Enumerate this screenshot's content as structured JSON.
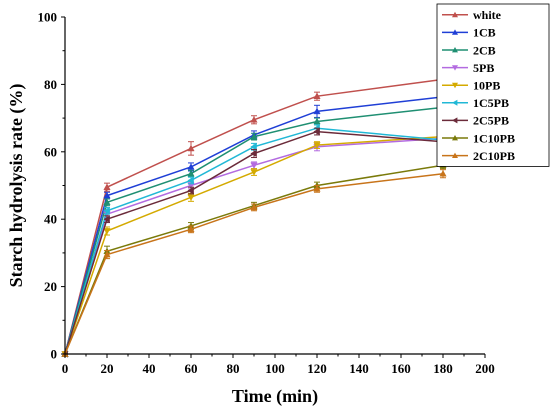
{
  "chart_data": {
    "type": "line",
    "title": "",
    "xlabel": "Time (min)",
    "ylabel": "Starch hydrolysis rate (%)",
    "xlim": [
      0,
      200
    ],
    "ylim": [
      0,
      100
    ],
    "xticks": [
      0,
      20,
      40,
      60,
      80,
      100,
      120,
      140,
      160,
      180,
      200
    ],
    "yticks": [
      0,
      20,
      40,
      60,
      80,
      100
    ],
    "grid": false,
    "legend_position": "top-right",
    "x": [
      0,
      20,
      60,
      90,
      120,
      180
    ],
    "series": [
      {
        "name": "white",
        "color": "#c0504d",
        "marker": "triangle-up",
        "values": [
          0,
          49.5,
          61.0,
          69.5,
          76.5,
          81.5
        ],
        "errors": [
          0,
          1.2,
          2.0,
          1.2,
          1.2,
          1.8
        ]
      },
      {
        "name": "1CB",
        "color": "#1f3fd6",
        "marker": "triangle-up",
        "values": [
          0,
          47.0,
          55.5,
          65.0,
          72.0,
          76.3
        ],
        "errors": [
          0,
          1.0,
          1.2,
          1.2,
          1.8,
          1.0
        ]
      },
      {
        "name": "2CB",
        "color": "#1f8f72",
        "marker": "triangle-up",
        "values": [
          0,
          45.0,
          53.5,
          64.5,
          69.0,
          73.2
        ],
        "errors": [
          0,
          1.0,
          1.0,
          1.0,
          1.0,
          1.0
        ]
      },
      {
        "name": "5PB",
        "color": "#b36be0",
        "marker": "triangle-down",
        "values": [
          0,
          41.5,
          50.0,
          56.0,
          61.5,
          64.0
        ],
        "errors": [
          0,
          1.0,
          1.0,
          1.0,
          1.2,
          1.2
        ]
      },
      {
        "name": "10PB",
        "color": "#d4aa00",
        "marker": "triangle-down",
        "values": [
          0,
          36.5,
          46.5,
          54.0,
          62.0,
          64.5
        ],
        "errors": [
          0,
          1.2,
          1.2,
          1.0,
          1.0,
          1.2
        ]
      },
      {
        "name": "1C5PB",
        "color": "#21b8d6",
        "marker": "triangle-left",
        "values": [
          0,
          42.5,
          51.5,
          61.5,
          67.0,
          63.5
        ],
        "errors": [
          0,
          1.0,
          1.0,
          1.0,
          1.0,
          1.0
        ]
      },
      {
        "name": "2C5PB",
        "color": "#6b2b3a",
        "marker": "triangle-left",
        "values": [
          0,
          40.0,
          48.5,
          59.5,
          66.0,
          63.0
        ],
        "errors": [
          0,
          1.0,
          1.0,
          1.2,
          1.0,
          1.2
        ]
      },
      {
        "name": "1C10PB",
        "color": "#7a7a0a",
        "marker": "triangle-up",
        "values": [
          0,
          30.5,
          38.0,
          44.0,
          50.0,
          56.0
        ],
        "errors": [
          0,
          1.5,
          1.0,
          1.0,
          1.0,
          1.0
        ]
      },
      {
        "name": "2C10PB",
        "color": "#c8741a",
        "marker": "triangle-up",
        "values": [
          0,
          29.5,
          37.0,
          43.5,
          49.0,
          53.5
        ],
        "errors": [
          0,
          1.2,
          1.0,
          1.0,
          1.0,
          1.2
        ]
      }
    ]
  }
}
